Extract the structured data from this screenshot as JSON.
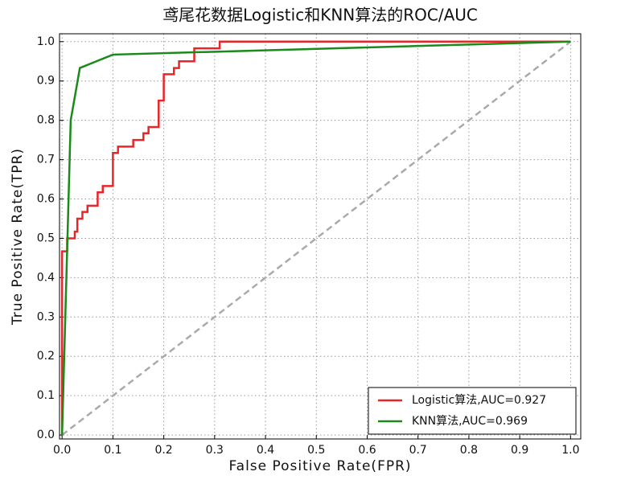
{
  "chart_data": {
    "type": "line",
    "title": "鸢尾花数据Logistic和KNN算法的ROC/AUC",
    "x_label": "False Positive Rate(FPR)",
    "y_label": "True Positive Rate(TPR)",
    "xlim": [
      -0.005,
      1.02
    ],
    "ylim": [
      -0.01,
      1.02
    ],
    "xticks": [
      {
        "value": 0,
        "label": "0.0"
      },
      0.1,
      0.2,
      0.3,
      0.4,
      0.5,
      0.6,
      0.7,
      0.8,
      0.9,
      {
        "value": 1,
        "label": "1.0"
      }
    ],
    "yticks": [
      {
        "value": 0,
        "label": "0.0"
      },
      0.1,
      0.2,
      0.3,
      0.4,
      0.5,
      0.6,
      0.7,
      0.8,
      0.9,
      {
        "value": 1,
        "label": "1.0"
      }
    ],
    "grid": true,
    "legend": "lower-right",
    "reference_line": {
      "x": [
        0,
        1
      ],
      "y": [
        0,
        1
      ],
      "color": "#aaaaaa"
    },
    "series": [
      {
        "name": "Logistic算法,AUC=0.927",
        "color": "#e8262a",
        "x": [
          0,
          0,
          0.01,
          0.01,
          0.025,
          0.025,
          0.03,
          0.03,
          0.04,
          0.04,
          0.05,
          0.05,
          0.07,
          0.07,
          0.08,
          0.08,
          0.1,
          0.1,
          0.11,
          0.11,
          0.14,
          0.14,
          0.16,
          0.16,
          0.17,
          0.17,
          0.19,
          0.19,
          0.2,
          0.2,
          0.22,
          0.22,
          0.23,
          0.23,
          0.26,
          0.26,
          0.31,
          0.31,
          1
        ],
        "values": [
          0,
          0.467,
          0.467,
          0.5,
          0.5,
          0.517,
          0.517,
          0.55,
          0.55,
          0.567,
          0.567,
          0.583,
          0.583,
          0.617,
          0.617,
          0.633,
          0.633,
          0.717,
          0.717,
          0.733,
          0.733,
          0.75,
          0.75,
          0.767,
          0.767,
          0.783,
          0.783,
          0.85,
          0.85,
          0.917,
          0.917,
          0.933,
          0.933,
          0.95,
          0.95,
          0.983,
          0.983,
          1,
          1
        ]
      },
      {
        "name": "KNN算法,AUC=0.969",
        "color": "#1a8a1a",
        "x": [
          0,
          0.017,
          0.035,
          0.1,
          1
        ],
        "values": [
          0,
          0.8,
          0.933,
          0.967,
          1
        ]
      }
    ]
  }
}
